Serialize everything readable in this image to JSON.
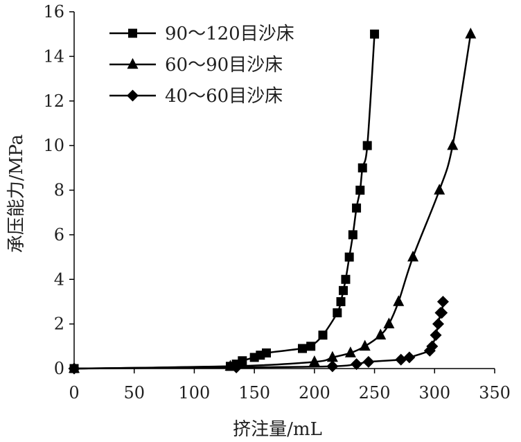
{
  "chart_data": {
    "type": "line",
    "xlabel": "挤注量/mL",
    "ylabel": "承压能力/MPa",
    "xlim": [
      0,
      350
    ],
    "ylim": [
      0,
      16
    ],
    "xticks": [
      0,
      50,
      100,
      150,
      200,
      250,
      300,
      350
    ],
    "yticks": [
      0,
      2,
      4,
      6,
      8,
      10,
      12,
      14,
      16
    ],
    "grid": false,
    "legend_position": "top-left",
    "series": [
      {
        "name": "90～120目沙床",
        "marker": "square",
        "color": "#000000",
        "x": [
          0,
          130,
          135,
          140,
          150,
          155,
          160,
          190,
          197,
          207,
          219,
          222,
          224,
          226,
          229,
          232,
          235,
          238,
          240,
          244,
          250
        ],
        "y": [
          0,
          0.1,
          0.2,
          0.35,
          0.5,
          0.6,
          0.7,
          0.9,
          1.0,
          1.5,
          2.5,
          3.0,
          3.5,
          4.0,
          5.0,
          6.0,
          7.2,
          8.0,
          9.0,
          10.0,
          15.0
        ]
      },
      {
        "name": "60～90目沙床",
        "marker": "triangle",
        "color": "#000000",
        "x": [
          0,
          130,
          200,
          215,
          230,
          242,
          255,
          262,
          270,
          282,
          304,
          315,
          330
        ],
        "y": [
          0,
          0.1,
          0.3,
          0.5,
          0.7,
          1.0,
          1.5,
          2.0,
          3.0,
          5.0,
          8.0,
          10.0,
          15.0
        ]
      },
      {
        "name": "40～60目沙床",
        "marker": "diamond",
        "color": "#000000",
        "x": [
          0,
          135,
          215,
          235,
          245,
          272,
          279,
          296,
          298,
          301,
          303,
          305,
          306,
          307
        ],
        "y": [
          0,
          0.05,
          0.1,
          0.2,
          0.3,
          0.4,
          0.5,
          0.8,
          1.0,
          1.5,
          2.0,
          2.5,
          2.5,
          3.0
        ]
      }
    ]
  }
}
